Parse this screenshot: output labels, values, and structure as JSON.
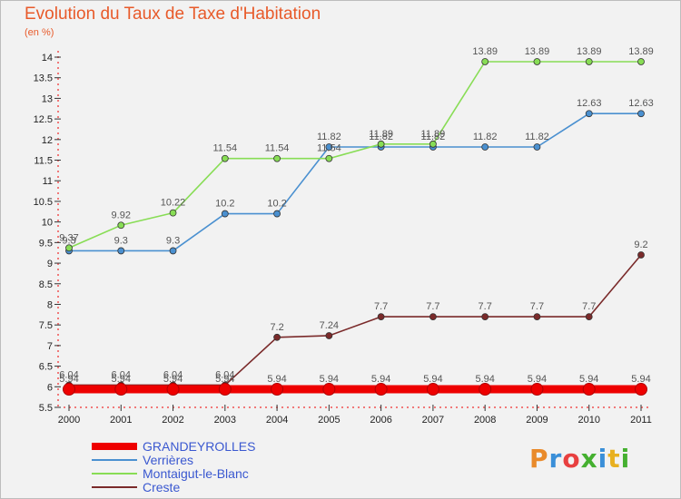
{
  "chart_data": {
    "type": "line",
    "title": "Evolution du Taux de Taxe d'Habitation",
    "unit": "(en %)",
    "x": [
      "2000",
      "2001",
      "2002",
      "2003",
      "2004",
      "2005",
      "2006",
      "2007",
      "2008",
      "2009",
      "2010",
      "2011"
    ],
    "ylim": [
      5.5,
      14
    ],
    "yticks": [
      "5.5",
      "6",
      "6.5",
      "7",
      "7.5",
      "8",
      "8.5",
      "9",
      "9.5",
      "10",
      "10.5",
      "11",
      "11.5",
      "12",
      "12.5",
      "13",
      "13.5",
      "14"
    ],
    "grid": false,
    "legend_placement": "bottom-left",
    "series": [
      {
        "name": "GRANDEYROLLES",
        "color": "#ee0000",
        "values": [
          5.94,
          5.94,
          5.94,
          5.94,
          5.94,
          5.94,
          5.94,
          5.94,
          5.94,
          5.94,
          5.94,
          5.94
        ],
        "labels": [
          "5.94",
          "5.94",
          "5.94",
          "5.94",
          "5.94",
          "5.94",
          "5.94",
          "5.94",
          "5.94",
          "5.94",
          "5.94",
          "5.94"
        ]
      },
      {
        "name": "Verrières",
        "color": "#4a90d0",
        "values": [
          9.3,
          9.3,
          9.3,
          10.2,
          10.2,
          11.82,
          11.82,
          11.82,
          11.82,
          11.82,
          12.63,
          12.63
        ],
        "labels": [
          "9.3",
          "9.3",
          "9.3",
          "10.2",
          "10.2",
          "11.82",
          "11.82",
          "11.82",
          "11.82",
          "11.82",
          "12.63",
          "12.63"
        ]
      },
      {
        "name": "Montaigut-le-Blanc",
        "color": "#88dd55",
        "values": [
          9.37,
          9.92,
          10.22,
          11.54,
          11.54,
          11.54,
          11.89,
          11.89,
          13.89,
          13.89,
          13.89,
          13.89
        ],
        "labels": [
          "9.37",
          "9.92",
          "10.22",
          "11.54",
          "11.54",
          "11.54",
          "11.89",
          "11.89",
          "13.89",
          "13.89",
          "13.89",
          "13.89"
        ]
      },
      {
        "name": "Creste",
        "color": "#7a2a2a",
        "values": [
          6.04,
          6.04,
          6.04,
          6.04,
          7.2,
          7.24,
          7.7,
          7.7,
          7.7,
          7.7,
          7.7,
          9.2
        ],
        "labels": [
          "6.04",
          "6.04",
          "6.04",
          "6.04",
          "7.2",
          "7.24",
          "7.7",
          "7.7",
          "7.7",
          "7.7",
          "7.7",
          "9.2"
        ]
      }
    ]
  },
  "brand": {
    "text": "Proxiti",
    "colors": [
      "#e98a2a",
      "#3a8fd8",
      "#e84040",
      "#45b030",
      "#3a8fd8",
      "#e8b020",
      "#45b030"
    ]
  }
}
